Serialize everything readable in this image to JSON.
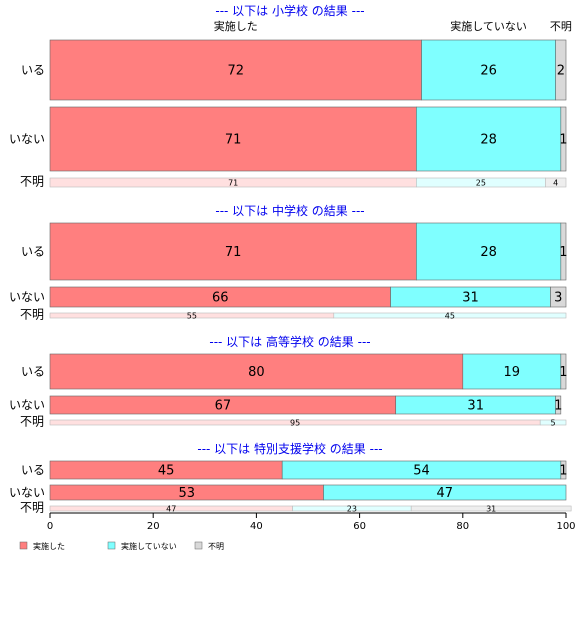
{
  "chart_data": {
    "type": "bar",
    "orientation": "horizontal-stacked-percent",
    "xlim": [
      0,
      100
    ],
    "xticks": [
      "0",
      "20",
      "40",
      "60",
      "80",
      "100"
    ],
    "colors": {
      "実施した": "#ff7f7f",
      "実施していない": "#7fffff",
      "不明": "#d9d9d9"
    },
    "column_labels": [
      "実施した",
      "実施していない",
      "不明"
    ],
    "legend": {
      "placement": "bottom-left",
      "entries": [
        "実施した",
        "実施していない",
        "不明"
      ]
    },
    "panels": [
      {
        "title": "--- 以下は 小学校 の結果 ---",
        "rows": [
          {
            "category": "いる",
            "values": [
              72,
              26,
              2
            ]
          },
          {
            "category": "いない",
            "values": [
              71,
              28,
              1
            ]
          },
          {
            "category": "不明",
            "values": [
              71,
              25,
              4
            ]
          }
        ]
      },
      {
        "title": "--- 以下は 中学校 の結果 ---",
        "rows": [
          {
            "category": "いる",
            "values": [
              71,
              28,
              1
            ]
          },
          {
            "category": "いない",
            "values": [
              66,
              31,
              3
            ]
          },
          {
            "category": "不明",
            "values": [
              55,
              45,
              0
            ]
          }
        ]
      },
      {
        "title": "--- 以下は 高等学校 の結果 ---",
        "rows": [
          {
            "category": "いる",
            "values": [
              80,
              19,
              1
            ]
          },
          {
            "category": "いない",
            "values": [
              67,
              31,
              1
            ]
          },
          {
            "category": "不明",
            "values": [
              95,
              5,
              0
            ]
          }
        ]
      },
      {
        "title": "--- 以下は 特別支援学校 の結果 ---",
        "rows": [
          {
            "category": "いる",
            "values": [
              45,
              54,
              1
            ]
          },
          {
            "category": "いない",
            "values": [
              53,
              47,
              0
            ]
          },
          {
            "category": "不明",
            "values": [
              47,
              23,
              31
            ]
          }
        ]
      }
    ]
  }
}
